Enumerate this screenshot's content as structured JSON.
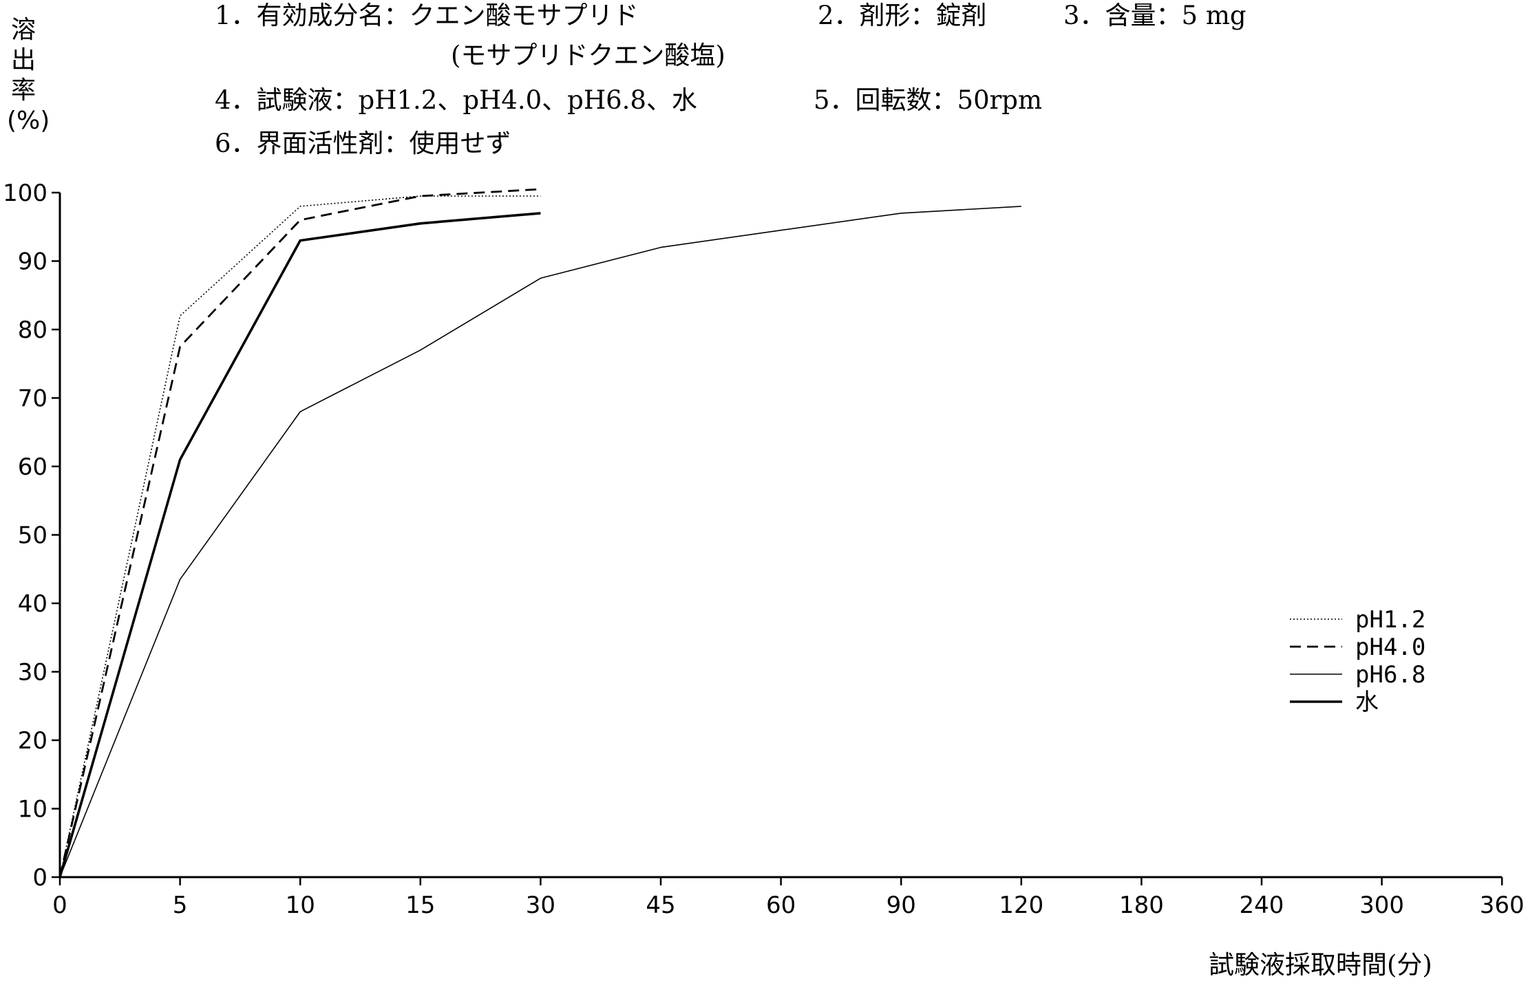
{
  "header": {
    "line1_item1": "1．有効成分名：クエン酸モサプリド",
    "line1_item2": "2．剤形：錠剤",
    "line1_item3": "3．含量：5 mg",
    "line2": "(モサプリドクエン酸塩)",
    "line3_item4": "4．試験液：pH1.2、pH4.0、pH6.8、水",
    "line3_item5": "5．回転数：50rpm",
    "line4_item6": "6．界面活性剤：使用せず"
  },
  "chart_data": {
    "type": "line",
    "title": "",
    "ylabel_chars": [
      "溶",
      "出",
      "率",
      "(%)"
    ],
    "xlabel": "試験液採取時間(分)",
    "x_categories": [
      "0",
      "5",
      "10",
      "15",
      "30",
      "45",
      "60",
      "90",
      "120",
      "180",
      "240",
      "300",
      "360"
    ],
    "y_ticks": [
      "0",
      "10",
      "20",
      "30",
      "40",
      "50",
      "60",
      "70",
      "80",
      "90",
      "100"
    ],
    "ylim": [
      0,
      100
    ],
    "grid": false,
    "legend_position": "right",
    "series": [
      {
        "name": "pH1.2",
        "style": "dotted",
        "x": [
          0,
          5,
          10,
          15,
          30
        ],
        "values": [
          0,
          82,
          98,
          99.5,
          99.5
        ]
      },
      {
        "name": "pH4.0",
        "style": "dashed",
        "x": [
          0,
          5,
          10,
          15,
          30
        ],
        "values": [
          0,
          77.5,
          96,
          99.5,
          100.5
        ]
      },
      {
        "name": "pH6.8",
        "style": "thin",
        "x": [
          0,
          5,
          10,
          15,
          30,
          45,
          60,
          90,
          120
        ],
        "values": [
          0,
          43.5,
          68,
          77,
          87.5,
          92,
          94.5,
          97,
          98
        ]
      },
      {
        "name": "水",
        "style": "thick",
        "x": [
          0,
          5,
          10,
          15,
          30
        ],
        "values": [
          0,
          61,
          93,
          95.5,
          97
        ]
      }
    ]
  }
}
